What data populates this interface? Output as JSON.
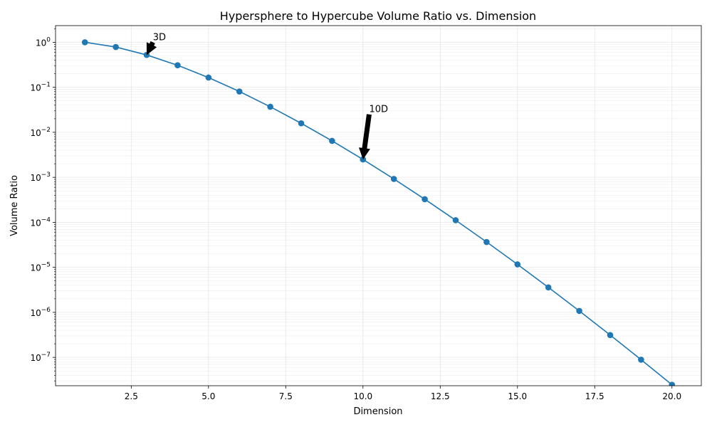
{
  "chart_data": {
    "type": "line",
    "title": "Hypersphere to Hypercube Volume Ratio vs. Dimension",
    "xlabel": "Dimension",
    "ylabel": "Volume Ratio",
    "xlim": [
      0.05,
      20.95
    ],
    "ylim_log10": [
      -7.63,
      0.37
    ],
    "yscale": "log",
    "grid": true,
    "legend": "none",
    "x_ticks": [
      2.5,
      5.0,
      7.5,
      10.0,
      12.5,
      15.0,
      17.5,
      20.0
    ],
    "x_tick_labels": [
      "2.5",
      "5.0",
      "7.5",
      "10.0",
      "12.5",
      "15.0",
      "17.5",
      "20.0"
    ],
    "y_tick_exponents": [
      0,
      -1,
      -2,
      -3,
      -4,
      -5,
      -6,
      -7
    ],
    "y_tick_base": "10",
    "series": [
      {
        "color": "#1f77b4",
        "x": [
          1,
          2,
          3,
          4,
          5,
          6,
          7,
          8,
          9,
          10,
          11,
          12,
          13,
          14,
          15,
          16,
          17,
          18,
          19,
          20
        ],
        "y": [
          1.0,
          0.7854,
          0.5236,
          0.3084,
          0.1645,
          0.08075,
          0.03691,
          0.01585,
          0.006442,
          0.00249,
          0.0009199,
          0.000326,
          0.0001112,
          3.658e-05,
          1.164e-05,
          3.591e-06,
          1.076e-06,
          3.134e-07,
          8.879e-08,
          2.461e-08
        ]
      }
    ],
    "annotations": [
      {
        "text": "3D",
        "x": 3,
        "y": 0.5236,
        "text_x": 3.2,
        "text_y": 1.0
      },
      {
        "text": "10D",
        "x": 10,
        "y": 0.00249,
        "text_x": 10.2,
        "text_y": 0.025
      }
    ]
  }
}
